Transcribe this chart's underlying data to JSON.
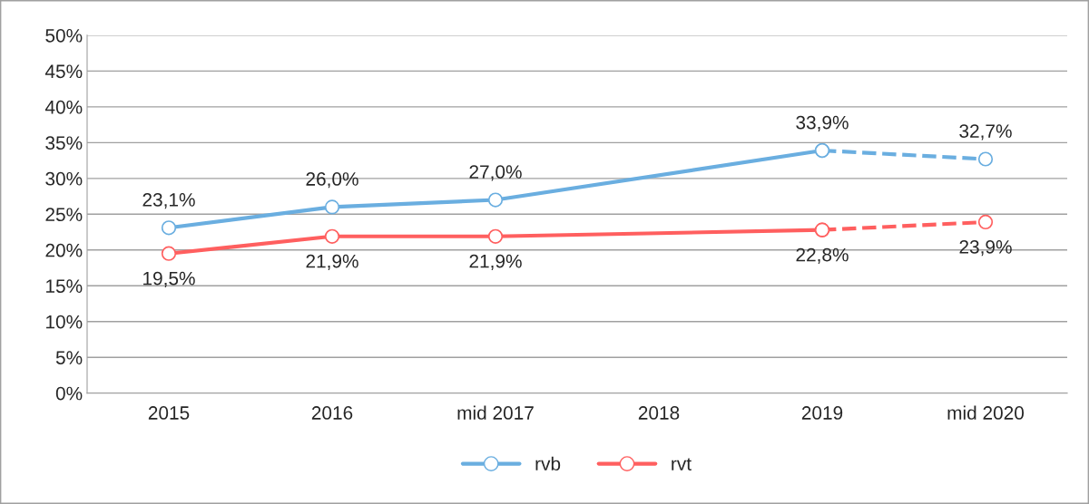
{
  "chart_data": {
    "type": "line",
    "categories": [
      "2015",
      "2016",
      "mid 2017",
      "2018",
      "2019",
      "mid 2020"
    ],
    "ylim": [
      0,
      50
    ],
    "yticks": [
      {
        "value": 0,
        "label": "0%"
      },
      {
        "value": 5,
        "label": "5%"
      },
      {
        "value": 10,
        "label": "10%"
      },
      {
        "value": 15,
        "label": "15%"
      },
      {
        "value": 20,
        "label": "20%"
      },
      {
        "value": 25,
        "label": "25%"
      },
      {
        "value": 30,
        "label": "30%"
      },
      {
        "value": 35,
        "label": "35%"
      },
      {
        "value": 40,
        "label": "40%"
      },
      {
        "value": 45,
        "label": "45%"
      },
      {
        "value": 50,
        "label": "50%"
      }
    ],
    "grid": "y",
    "legend": "bottom",
    "marker": "circle",
    "series": [
      {
        "name": "rvb",
        "color": "#6aaee0",
        "line_style": "solid",
        "values": [
          23.1,
          26.0,
          27.0,
          null,
          33.9,
          null
        ],
        "value_labels": [
          "23,1%",
          "26,0%",
          "27,0%",
          null,
          "33,9%",
          null
        ]
      },
      {
        "name": "rvt",
        "color": "#ff5f5f",
        "line_style": "solid",
        "values": [
          19.5,
          21.9,
          21.9,
          null,
          22.8,
          null
        ],
        "value_labels": [
          "19,5%",
          "21,9%",
          "21,9%",
          null,
          "22,8%",
          null
        ]
      },
      {
        "color": "#6aaee0",
        "line_style": "dashed",
        "values": [
          null,
          null,
          null,
          null,
          33.9,
          32.7
        ],
        "value_labels": [
          null,
          null,
          null,
          null,
          null,
          "32,7%"
        ]
      },
      {
        "color": "#ff5f5f",
        "line_style": "dashed",
        "values": [
          null,
          null,
          null,
          null,
          22.8,
          23.9
        ],
        "value_labels": [
          null,
          null,
          null,
          null,
          null,
          "23,9%"
        ]
      }
    ]
  }
}
